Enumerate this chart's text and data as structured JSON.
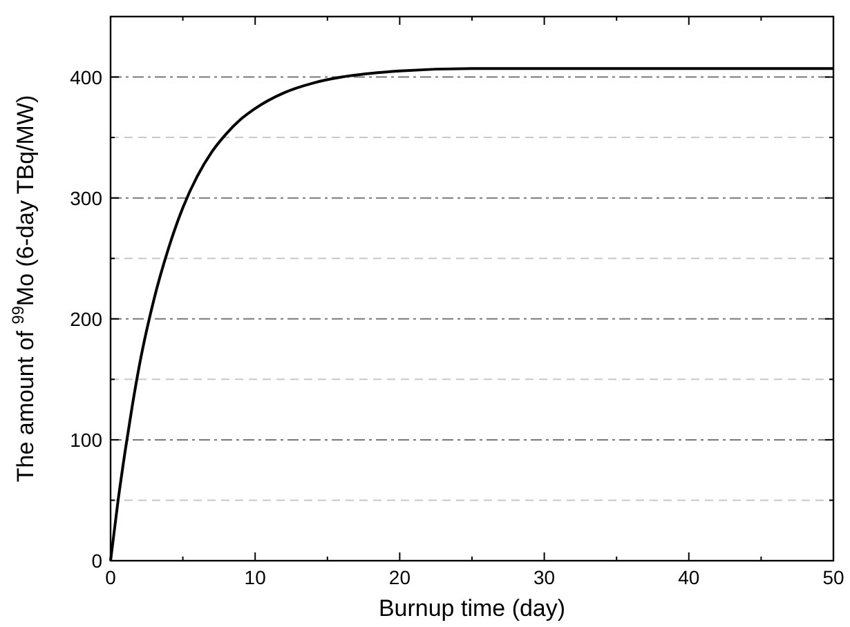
{
  "chart_data": {
    "type": "line",
    "xlabel": "Burnup time (day)",
    "ylabel": "The amount of $^{99}$Mo (6-day TBq/MW)",
    "xlim": [
      0,
      50
    ],
    "ylim": [
      0,
      450
    ],
    "xticks": [
      0,
      {
        "value": 5,
        "label": null
      },
      10,
      {
        "value": 15,
        "label": null
      },
      20,
      {
        "value": 25,
        "label": null
      },
      30,
      {
        "value": 35,
        "label": null
      },
      40,
      {
        "value": 45,
        "label": null
      },
      50
    ],
    "yticks": [
      0,
      {
        "value": 50,
        "label": null
      },
      100,
      {
        "value": 150,
        "label": null
      },
      200,
      {
        "value": 250,
        "label": null
      },
      300,
      {
        "value": 350,
        "label": null
      },
      400
    ],
    "grid": "y",
    "line_style": "solid",
    "series": [
      {
        "color": "#000000",
        "x": [
          0,
          0.5,
          1,
          1.5,
          2,
          3,
          4,
          5,
          6,
          7,
          8,
          9,
          10,
          12,
          14,
          16,
          18,
          20,
          25,
          30,
          40,
          50
        ],
        "values": [
          0,
          48,
          90,
          128,
          162,
          216,
          258,
          292,
          318,
          338,
          353,
          365,
          374,
          387,
          395,
          400,
          403,
          405,
          407,
          407,
          407,
          407
        ]
      }
    ]
  }
}
